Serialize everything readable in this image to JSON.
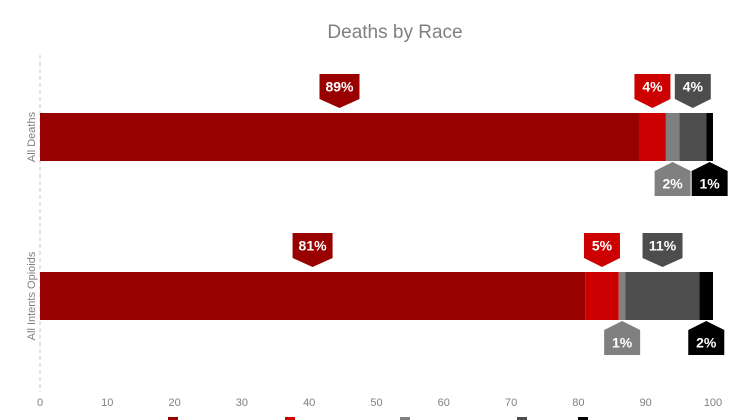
{
  "chart_data": {
    "type": "bar",
    "orientation": "horizontal",
    "stacked": true,
    "title": "Deaths by Race",
    "categories": [
      "All Deaths",
      "All Intents Opioids"
    ],
    "series": [
      {
        "values": [
          89,
          81
        ],
        "color": "#990000"
      },
      {
        "values": [
          4,
          5
        ],
        "color": "#cc0000"
      },
      {
        "values": [
          2,
          1
        ],
        "color": "#808080"
      },
      {
        "values": [
          4,
          11
        ],
        "color": "#4d4d4d"
      },
      {
        "values": [
          1,
          2
        ],
        "color": "#000000"
      }
    ],
    "data_labels": [
      [
        "89%",
        "4%",
        "2%",
        "4%",
        "1%"
      ],
      [
        "81%",
        "5%",
        "1%",
        "11%",
        "2%"
      ]
    ],
    "label_positions": [
      [
        "above",
        "above",
        "below",
        "above",
        "below"
      ],
      [
        "above",
        "above",
        "below",
        "above",
        "below"
      ]
    ],
    "x_ticks": [
      "0",
      "10",
      "20",
      "30",
      "40",
      "50",
      "60",
      "70",
      "80",
      "90",
      "100"
    ],
    "xlim": [
      0,
      100
    ],
    "grid": false,
    "legend": "bottom"
  }
}
